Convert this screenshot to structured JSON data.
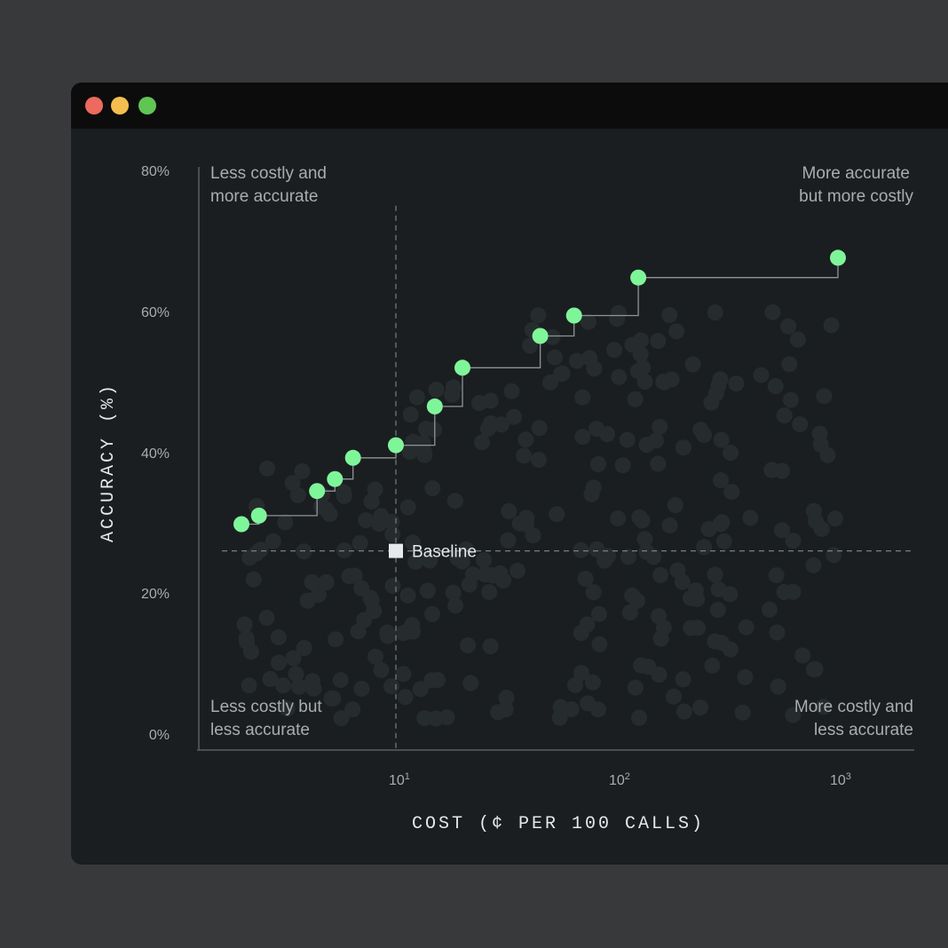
{
  "window": {
    "traffic_lights": [
      "close",
      "minimize",
      "maximize"
    ],
    "colors": {
      "close": "#ec6a5e",
      "minimize": "#f4bf4f",
      "maximize": "#61c554"
    }
  },
  "chart_data": {
    "type": "scatter",
    "xlabel": "COST (¢ PER 100 CALLS)",
    "ylabel": "ACCURACY (%)",
    "x_scale": "log",
    "xlim": [
      1.5,
      2000
    ],
    "ylim": [
      0,
      80
    ],
    "x_ticks": [
      {
        "value": 10,
        "label": "10",
        "exp": "1"
      },
      {
        "value": 100,
        "label": "10",
        "exp": "2"
      },
      {
        "value": 1000,
        "label": "10",
        "exp": "3"
      }
    ],
    "y_ticks": [
      {
        "value": 0,
        "label": "0%"
      },
      {
        "value": 20,
        "label": "20%"
      },
      {
        "value": 40,
        "label": "40%"
      },
      {
        "value": 60,
        "label": "60%"
      },
      {
        "value": 80,
        "label": "80%"
      }
    ],
    "quadrant_labels": {
      "top_left": [
        "Less costly and",
        "more accurate"
      ],
      "top_right": [
        "More accurate",
        "but more costly"
      ],
      "bottom_left": [
        "Less costly but",
        "less accurate"
      ],
      "bottom_right": [
        "More costly and",
        "less accurate"
      ]
    },
    "baseline": {
      "label": "Baseline",
      "x": 10,
      "y": 26
    },
    "colors": {
      "frontier": "#7ff59a",
      "background_points": "#262c2e",
      "lines": "#8f9496"
    },
    "frontier": [
      {
        "x": 2.0,
        "y": 29.8
      },
      {
        "x": 2.4,
        "y": 31
      },
      {
        "x": 4.4,
        "y": 34.5
      },
      {
        "x": 5.3,
        "y": 36.2
      },
      {
        "x": 6.4,
        "y": 39.2
      },
      {
        "x": 10.0,
        "y": 41
      },
      {
        "x": 15.0,
        "y": 46.5
      },
      {
        "x": 20.0,
        "y": 52
      },
      {
        "x": 45.0,
        "y": 56.5
      },
      {
        "x": 64.0,
        "y": 59.4
      },
      {
        "x": 125.0,
        "y": 64.8
      },
      {
        "x": 1000.0,
        "y": 67.6
      }
    ],
    "background_point_count": 300
  }
}
